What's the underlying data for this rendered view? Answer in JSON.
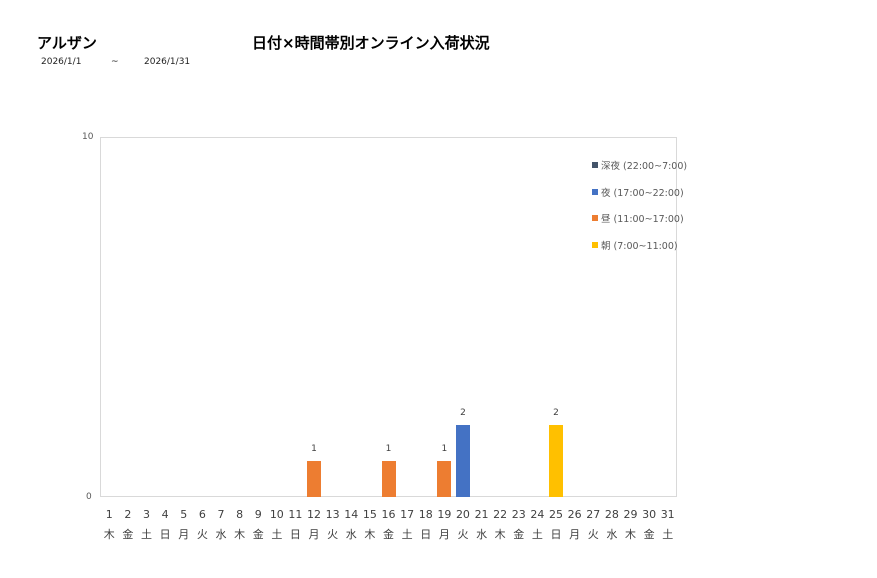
{
  "header": {
    "store_name": "アルザン",
    "title": "日付×時間帯別オンライン入荷状況",
    "date_from": "2026/1/1",
    "date_sep": "~",
    "date_to": "2026/1/31"
  },
  "chart_data": {
    "type": "bar",
    "stacked": true,
    "title": "日付×時間帯別オンライン入荷状況",
    "xlabel": "",
    "ylabel": "",
    "ylim": [
      0,
      10
    ],
    "yticks": [
      "0",
      "10"
    ],
    "grid": false,
    "legend_position": "right-top",
    "categories": [
      "1",
      "2",
      "3",
      "4",
      "5",
      "6",
      "7",
      "8",
      "9",
      "10",
      "11",
      "12",
      "13",
      "14",
      "15",
      "16",
      "17",
      "18",
      "19",
      "20",
      "21",
      "22",
      "23",
      "24",
      "25",
      "26",
      "27",
      "28",
      "29",
      "30",
      "31"
    ],
    "weekdays": [
      "木",
      "金",
      "土",
      "日",
      "月",
      "火",
      "水",
      "木",
      "金",
      "土",
      "日",
      "月",
      "火",
      "水",
      "木",
      "金",
      "土",
      "日",
      "月",
      "火",
      "水",
      "木",
      "金",
      "土",
      "日",
      "月",
      "火",
      "水",
      "木",
      "金",
      "土"
    ],
    "series": [
      {
        "name": "深夜 (22:00~7:00)",
        "color": "#44546a",
        "values": [
          0,
          0,
          0,
          0,
          0,
          0,
          0,
          0,
          0,
          0,
          0,
          0,
          0,
          0,
          0,
          0,
          0,
          0,
          0,
          0,
          0,
          0,
          0,
          0,
          0,
          0,
          0,
          0,
          0,
          0,
          0
        ]
      },
      {
        "name": "夜 (17:00~22:00)",
        "color": "#4472c4",
        "values": [
          0,
          0,
          0,
          0,
          0,
          0,
          0,
          0,
          0,
          0,
          0,
          0,
          0,
          0,
          0,
          0,
          0,
          0,
          0,
          2,
          0,
          0,
          0,
          0,
          0,
          0,
          0,
          0,
          0,
          0,
          0
        ]
      },
      {
        "name": "昼 (11:00~17:00)",
        "color": "#ed7d31",
        "values": [
          0,
          0,
          0,
          0,
          0,
          0,
          0,
          0,
          0,
          0,
          0,
          1,
          0,
          0,
          0,
          1,
          0,
          0,
          1,
          0,
          0,
          0,
          0,
          0,
          0,
          0,
          0,
          0,
          0,
          0,
          0
        ]
      },
      {
        "name": "朝 (7:00~11:00)",
        "color": "#ffc000",
        "values": [
          0,
          0,
          0,
          0,
          0,
          0,
          0,
          0,
          0,
          0,
          0,
          0,
          0,
          0,
          0,
          0,
          0,
          0,
          0,
          0,
          0,
          0,
          0,
          0,
          2,
          0,
          0,
          0,
          0,
          0,
          0
        ]
      }
    ],
    "data_labels": [
      {
        "day": "12",
        "value": "1"
      },
      {
        "day": "16",
        "value": "1"
      },
      {
        "day": "19",
        "value": "1"
      },
      {
        "day": "20",
        "value": "2"
      },
      {
        "day": "25",
        "value": "2"
      }
    ]
  }
}
